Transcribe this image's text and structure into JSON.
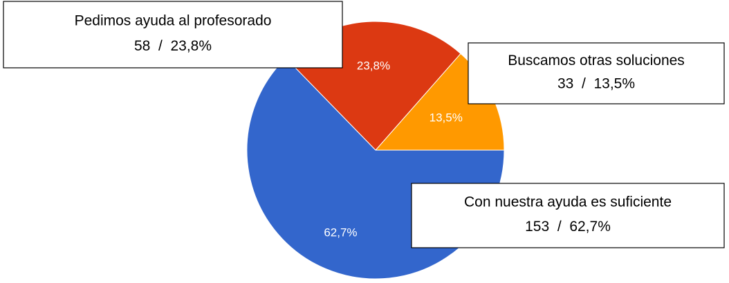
{
  "chart_data": {
    "type": "pie",
    "categories": [
      "Buscamos otras soluciones",
      "Pedimos ayuda al profesorado",
      "Con nuestra ayuda es suficiente"
    ],
    "values": [
      13.5,
      23.8,
      62.7
    ],
    "value_labels": [
      "13,5%",
      "23,8%",
      "62,7%"
    ],
    "callout_labels": [
      "33  /  13,5%",
      "58  /  23,8%",
      "153  /  62,7%"
    ],
    "colors": [
      "#ff9900",
      "#dc3912",
      "#3366cc"
    ]
  }
}
